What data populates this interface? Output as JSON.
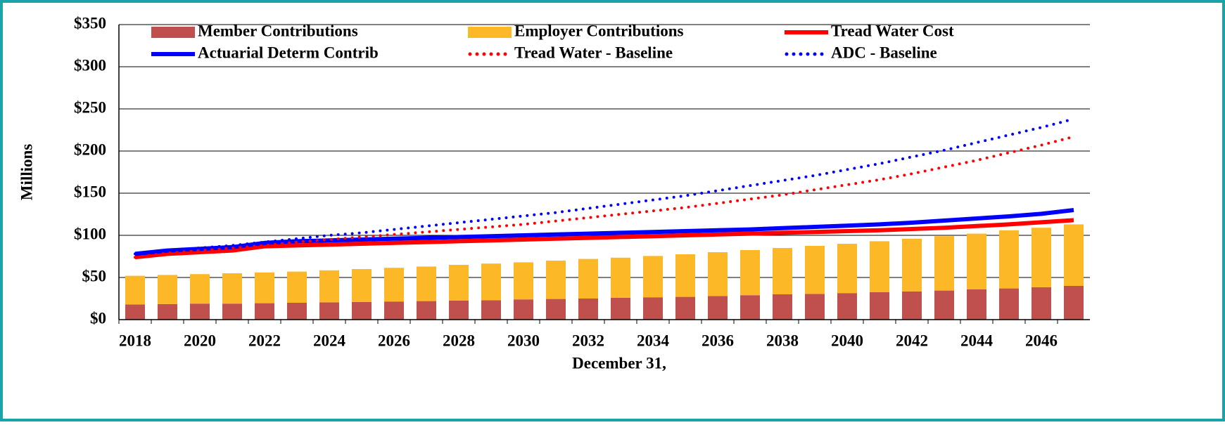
{
  "chart_data": {
    "type": "bar",
    "categories": [
      "2018",
      null,
      "2020",
      null,
      "2022",
      null,
      "2024",
      null,
      "2026",
      null,
      "2028",
      null,
      "2030",
      null,
      "2032",
      null,
      "2034",
      null,
      "2036",
      null,
      "2038",
      null,
      "2040",
      null,
      "2042",
      null,
      "2044",
      null,
      "2046",
      null
    ],
    "x_label": "December 31,",
    "y_label": "Millions",
    "ylim": [
      0,
      350
    ],
    "yticks": [
      {
        "value": 0,
        "label": "$0"
      },
      {
        "value": 50,
        "label": "$50"
      },
      {
        "value": 100,
        "label": "$100"
      },
      {
        "value": 150,
        "label": "$150"
      },
      {
        "value": 200,
        "label": "$200"
      },
      {
        "value": 250,
        "label": "$250"
      },
      {
        "value": 300,
        "label": "$300"
      },
      {
        "value": 350,
        "label": "$350"
      }
    ],
    "grid": true,
    "stacked": true,
    "series": [
      {
        "name": "Member Contributions",
        "type": "bar",
        "color": "#c0504d",
        "values": [
          18,
          18.5,
          19,
          19,
          19.5,
          20,
          20.5,
          21,
          21.5,
          22,
          22.5,
          23,
          24,
          24.5,
          25,
          26,
          26.5,
          27,
          28,
          29,
          30,
          30.5,
          31.5,
          32.5,
          33.5,
          34.5,
          36,
          37,
          38.5,
          40
        ]
      },
      {
        "name": "Employer Contributions",
        "type": "bar",
        "color": "#fdb827",
        "values": [
          34,
          34.5,
          35,
          36,
          36.5,
          37,
          38,
          39,
          40,
          41,
          42.5,
          43.5,
          44,
          45.5,
          47,
          47.5,
          49,
          50.5,
          52,
          53.5,
          55,
          57,
          58.5,
          60.5,
          62.5,
          64.5,
          66,
          69,
          70.5,
          73
        ]
      },
      {
        "name": "Tread Water Cost",
        "type": "line",
        "style": "solid",
        "color": "#ff0000",
        "values": [
          74,
          78,
          80,
          82,
          87,
          88,
          89,
          90,
          91,
          92,
          93,
          94,
          95,
          96,
          97,
          98,
          99,
          100,
          101,
          102,
          103,
          104,
          105,
          106,
          107.5,
          109,
          111,
          113,
          115.5,
          118
        ]
      },
      {
        "name": "Actuarial Determ Contrib",
        "type": "line",
        "style": "solid",
        "color": "#0000ff",
        "values": [
          78,
          82,
          84,
          86,
          91,
          93,
          94,
          95,
          96,
          97,
          98,
          99,
          100,
          101,
          102,
          103,
          104,
          105,
          106,
          107,
          108.5,
          110,
          111.5,
          113,
          115,
          117.5,
          120,
          122.5,
          125.5,
          130
        ]
      },
      {
        "name": "Tread Water - Baseline",
        "type": "line",
        "style": "dotted",
        "color": "#ff0000",
        "values": [
          74,
          79,
          82,
          85,
          88,
          92,
          95,
          98,
          101,
          104,
          107,
          110,
          113,
          117,
          121,
          125,
          129,
          133,
          138,
          143,
          148,
          154,
          160,
          166,
          173,
          181,
          189,
          198,
          207,
          217
        ]
      },
      {
        "name": "ADC - Baseline",
        "type": "line",
        "style": "dotted",
        "color": "#0000ff",
        "values": [
          78,
          82,
          85,
          88,
          92,
          96,
          100,
          103,
          107,
          111,
          115,
          119,
          123,
          127,
          132,
          137,
          142,
          147,
          153,
          159,
          165,
          171,
          178,
          185,
          193,
          201,
          210,
          219,
          228,
          238
        ]
      }
    ]
  }
}
